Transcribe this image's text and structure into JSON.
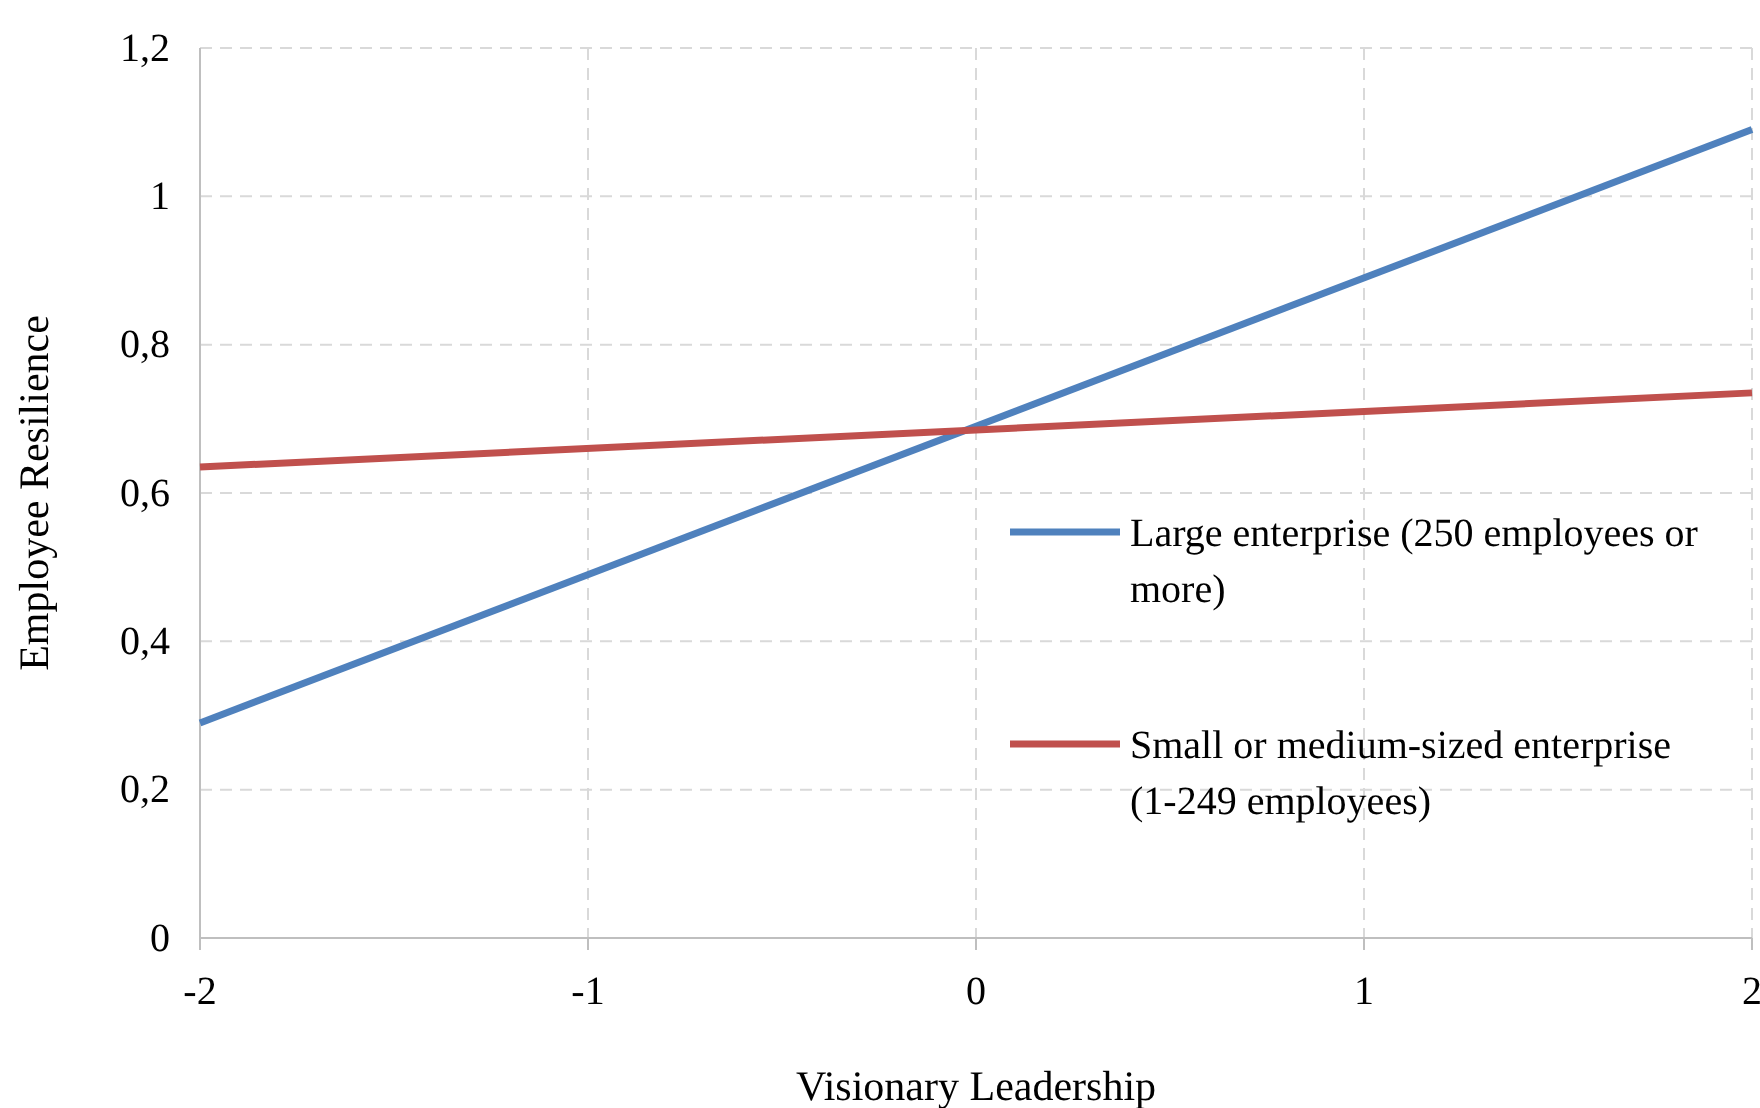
{
  "chart_data": {
    "type": "line",
    "xlabel": "Visionary Leadership",
    "ylabel": "Employee Resilience",
    "x": [
      -2,
      2
    ],
    "series": [
      {
        "name": "Large enterprise (250 employees or more)",
        "color": "#4f81bd",
        "values": [
          0.29,
          1.09
        ]
      },
      {
        "name": "Small or medium-sized enterprise (1-249 employees)",
        "color": "#c0504d",
        "values": [
          0.635,
          0.735
        ]
      }
    ],
    "xlim": [
      -2,
      2
    ],
    "xticks": [
      -2,
      -1,
      0,
      1,
      2
    ],
    "ylim": [
      0,
      1.2
    ],
    "yticks": [
      0,
      {
        "value": 0.2,
        "label": "0,2"
      },
      {
        "value": 0.4,
        "label": "0,4"
      },
      {
        "value": 0.6,
        "label": "0,6"
      },
      {
        "value": 0.8,
        "label": "0,8"
      },
      1,
      {
        "value": 1.2,
        "label": "1,2"
      }
    ],
    "grid": true,
    "legend": "right",
    "marker": "none",
    "line_style": "solid"
  }
}
